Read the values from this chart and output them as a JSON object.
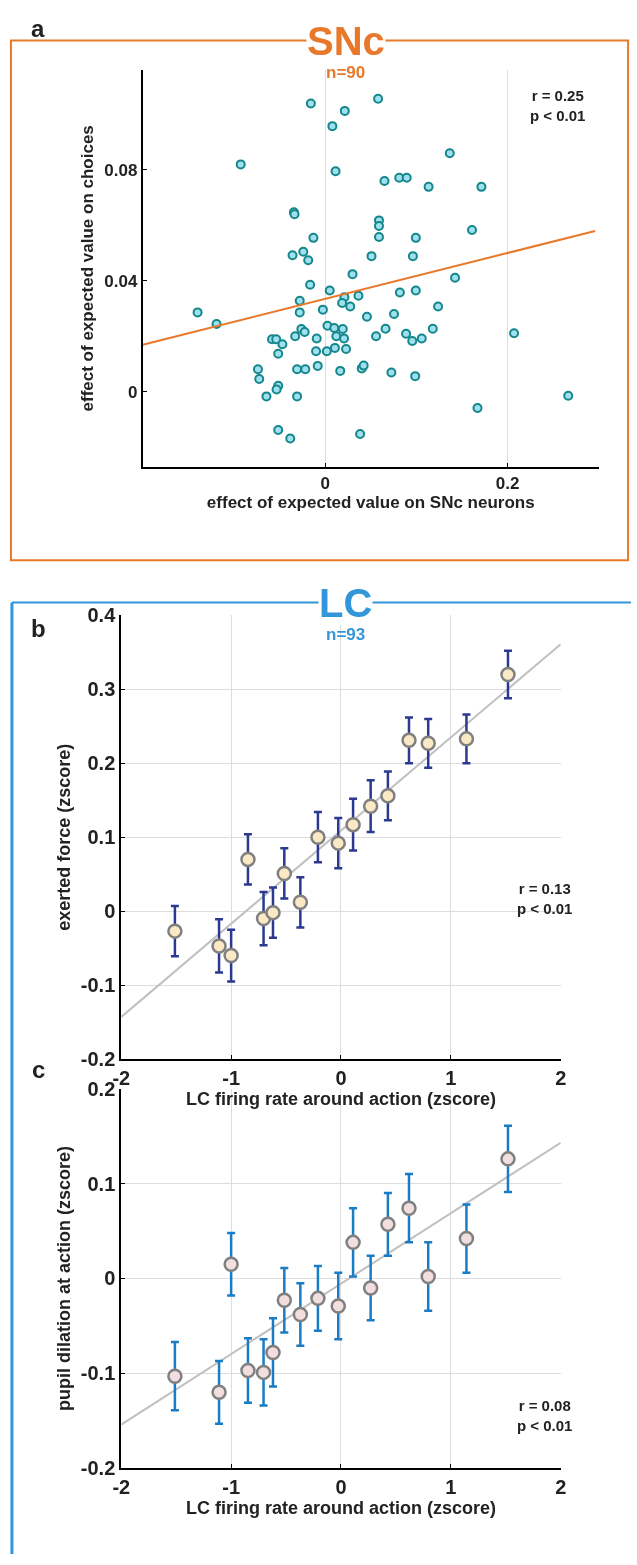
{
  "chart_data": [
    {
      "type": "scatter",
      "title": "SNc",
      "subtitle": "n=90",
      "xlabel": "effect of expected value on SNc neurons",
      "ylabel": "effect of expected value on choices",
      "annotations": [
        "a",
        "r = 0.25\np < 0.01"
      ],
      "xlim": [
        -0.2,
        0.3
      ],
      "xticks": [
        0,
        0.2
      ],
      "ylim": [
        -0.027,
        0.116
      ],
      "yticks": [
        0,
        0.04,
        0.08
      ],
      "grid": "x",
      "series": [
        {
          "marker": "circle",
          "color": "#9fe0ef",
          "x": [
            -0.0157,
            0.058,
            0.0215,
            0.0079,
            -0.0926,
            0.0114,
            0.065,
            -0.0343,
            -0.0336,
            0.059,
            0.059,
            0.059,
            -0.0129,
            -0.0358,
            -0.024,
            -0.0186,
            0.0508,
            0.03,
            -0.0165,
            0.005,
            -0.0279,
            -0.0279,
            0.0211,
            0.0186,
            0.0275,
            0.0365,
            -0.0025,
            -0.1399,
            -0.1191,
            0.0458,
            0.0025,
            0.01,
            0.0193,
            -0.0261,
            -0.0225,
            -0.0329,
            0.0122,
            0.0207,
            -0.0093,
            0.0558,
            -0.0583,
            -0.0537,
            -0.0469,
            0.0107,
            0.0229,
            0.0018,
            -0.01,
            -0.0515,
            -0.0082,
            -0.0308,
            -0.0218,
            0.0165,
            0.0401,
            0.0422,
            -0.0737,
            -0.0723,
            -0.0515,
            -0.0533,
            -0.0644,
            -0.0308,
            -0.0515,
            -0.0383,
            0.0383,
            0.1366,
            0.0812,
            0.0894,
            0.1134,
            0.1713,
            0.161,
            0.0994,
            0.0962,
            0.1424,
            0.0819,
            0.0994,
            0.1238,
            0.0755,
            0.0662,
            0.0887,
            0.0955,
            0.1059,
            0.118,
            0.2071,
            0.0726,
            0.0987,
            0.2665,
            0.167
          ],
          "values": [
            0.104,
            0.1057,
            0.1013,
            0.0958,
            0.082,
            0.0795,
            0.076,
            0.0647,
            0.064,
            0.0618,
            0.0598,
            0.0558,
            0.0555,
            0.0492,
            0.0505,
            0.0474,
            0.0489,
            0.0424,
            0.0386,
            0.0365,
            0.0328,
            0.0286,
            0.0341,
            0.032,
            0.0307,
            0.0346,
            0.0296,
            0.0286,
            0.0244,
            0.027,
            0.0238,
            0.023,
            0.0226,
            0.0226,
            0.0215,
            0.02,
            0.02,
            0.0192,
            0.0192,
            0.02,
            0.0189,
            0.0189,
            0.0171,
            0.0158,
            0.0154,
            0.0146,
            0.0146,
            0.0137,
            0.0093,
            0.0081,
            0.0081,
            0.0075,
            0.0084,
            0.0094,
            0.0081,
            0.0046,
            0.0021,
            0.0008,
            -0.0017,
            -0.0017,
            -0.0138,
            -0.0169,
            -0.0153,
            0.086,
            0.0772,
            0.0772,
            0.0739,
            0.0739,
            0.0583,
            0.0555,
            0.0489,
            0.0411,
            0.0358,
            0.0365,
            0.0307,
            0.028,
            0.0227,
            0.0209,
            0.0183,
            0.0192,
            0.0227,
            0.0211,
            0.0069,
            0.0056,
            -0.0015,
            -0.0059
          ]
        },
        {
          "type": "line",
          "color": "#e8782a",
          "x": [
            -0.2,
            0.296
          ],
          "values": [
            0.0169,
            0.058
          ]
        }
      ]
    },
    {
      "type": "scatter",
      "title": "LC",
      "subtitle": "n=93",
      "xlabel": "LC firing rate around action (zscore)",
      "ylabel": "exerted force (zscore)",
      "annotations": [
        "b",
        "r = 0.13\np < 0.01"
      ],
      "xlim": [
        -2,
        2
      ],
      "xticks": [
        -2,
        -1,
        0,
        1,
        2
      ],
      "ylim": [
        -0.2,
        0.4
      ],
      "yticks": [
        -0.2,
        -0.1,
        0,
        0.1,
        0.2,
        0.3,
        0.4
      ],
      "grid": true,
      "series": [
        {
          "type": "line",
          "color": "#c0c0c0",
          "x": [
            -2,
            2
          ],
          "values": [
            -0.143,
            0.361
          ]
        },
        {
          "marker": "circle",
          "color": "#fbe8c4",
          "x": [
            -1.512,
            -1.11,
            -1.0,
            -0.847,
            -0.705,
            -0.619,
            -0.516,
            -0.37,
            -0.21,
            -0.025,
            0.11,
            0.27,
            0.427,
            0.619,
            0.794,
            1.142,
            1.52
          ],
          "values": [
            -0.027,
            -0.047,
            -0.06,
            0.07,
            -0.01,
            -0.002,
            0.051,
            0.012,
            0.1,
            0.092,
            0.117,
            0.142,
            0.156,
            0.231,
            0.227,
            0.233,
            0.32
          ],
          "errors": [
            0.034,
            0.036,
            0.035,
            0.034,
            0.036,
            0.034,
            0.034,
            0.034,
            0.034,
            0.034,
            0.035,
            0.035,
            0.033,
            0.031,
            0.033,
            0.033,
            0.032
          ]
        }
      ]
    },
    {
      "type": "scatter",
      "xlabel": "LC firing rate around action (zscore)",
      "ylabel": "pupil dilation at action (zscore)",
      "annotations": [
        "c",
        "r = 0.08\np < 0.01"
      ],
      "xlim": [
        -2,
        2
      ],
      "xticks": [
        -2,
        -1,
        0,
        1,
        2
      ],
      "ylim": [
        -0.2,
        0.2
      ],
      "yticks": [
        -0.2,
        -0.1,
        0,
        0.1,
        0.2
      ],
      "grid": true,
      "series": [
        {
          "type": "line",
          "color": "#c0c0c0",
          "x": [
            -2,
            2
          ],
          "values": [
            -0.154,
            0.143
          ]
        },
        {
          "marker": "circle",
          "color": "#f2dede",
          "x": [
            -1.512,
            -1.11,
            -1.0,
            -0.847,
            -0.705,
            -0.619,
            -0.516,
            -0.37,
            -0.21,
            -0.025,
            0.11,
            0.27,
            0.427,
            0.619,
            0.794,
            1.142,
            1.52
          ],
          "values": [
            -0.103,
            -0.12,
            0.015,
            -0.097,
            -0.099,
            -0.078,
            -0.023,
            -0.038,
            -0.021,
            -0.029,
            0.038,
            -0.01,
            0.057,
            0.074,
            0.002,
            0.042,
            0.126
          ],
          "errors": [
            0.036,
            0.033,
            0.033,
            0.034,
            0.035,
            0.036,
            0.034,
            0.033,
            0.034,
            0.035,
            0.036,
            0.034,
            0.033,
            0.036,
            0.036,
            0.036,
            0.035
          ]
        }
      ]
    }
  ]
}
